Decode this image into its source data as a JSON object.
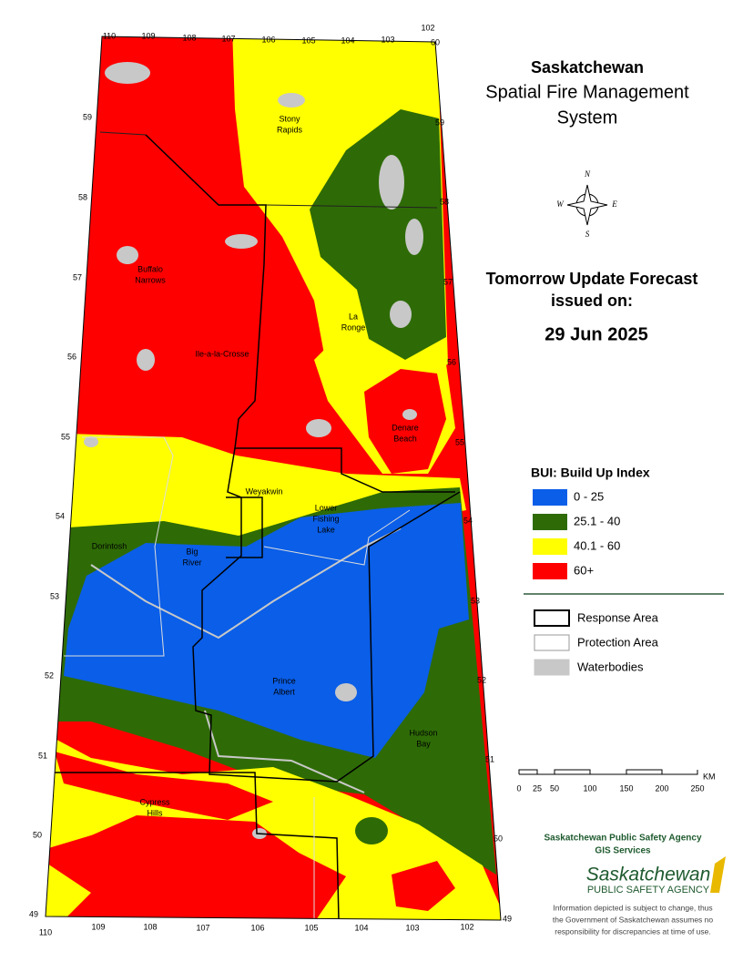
{
  "title": {
    "lines": [
      "Saskatchewan",
      "Spatial Fire Management",
      "System"
    ]
  },
  "forecast": {
    "heading": "Tomorrow Update Forecast",
    "issued": "issued on:",
    "date": "29 Jun 2025"
  },
  "compass": [
    "N",
    "E",
    "W",
    "S"
  ],
  "bui_legend": {
    "title": "BUI: Build Up Index",
    "items": [
      {
        "label": "0 - 25",
        "color": "#0a5ee8"
      },
      {
        "label": "25.1 - 40",
        "color": "#2e6b06"
      },
      {
        "label": "40.1 - 60",
        "color": "#ffff00"
      },
      {
        "label": "60+",
        "color": "#ff0000"
      }
    ]
  },
  "boundary_legend": {
    "items": [
      {
        "label": "Response Area",
        "fill": "#ffffff",
        "stroke": "#000000"
      },
      {
        "label": "Protection Area",
        "fill": "#ffffff",
        "stroke": "#9a9a9a"
      },
      {
        "label": "Waterbodies",
        "fill": "#c8c8c8",
        "stroke": "#c8c8c8"
      }
    ]
  },
  "scale_bar": {
    "ticks": [
      0,
      25,
      50,
      100,
      150,
      200,
      250
    ],
    "unit": "KM"
  },
  "agency": {
    "name": "Saskatchewan Public Safety Agency",
    "dept": "GIS  Services",
    "logo_main": "Saskatchewan",
    "logo_sub": "PUBLIC SAFETY AGENCY"
  },
  "disclaimer": [
    "Information depicted is subject to change, thus",
    "the Government of Saskatchewan assumes no",
    "responsibility for discrepancies at time of use."
  ],
  "places": [
    {
      "lines": [
        "Stony",
        "Rapids"
      ]
    },
    {
      "lines": [
        "Buffalo",
        "Narrows"
      ]
    },
    {
      "lines": [
        "La",
        "Ronge"
      ]
    },
    {
      "lines": [
        "Ile-a-la-Crosse"
      ]
    },
    {
      "lines": [
        "Denare",
        "Beach"
      ]
    },
    {
      "lines": [
        "Weyakwin"
      ]
    },
    {
      "lines": [
        "Lower",
        "Fishing",
        "Lake"
      ]
    },
    {
      "lines": [
        "Dorintosh"
      ]
    },
    {
      "lines": [
        "Big",
        "River"
      ]
    },
    {
      "lines": [
        "Prince",
        "Albert"
      ]
    },
    {
      "lines": [
        "Hudson",
        "Bay"
      ]
    },
    {
      "lines": [
        "Cypress",
        "Hills"
      ]
    }
  ],
  "graticule": {
    "top": [
      110,
      109,
      108,
      107,
      106,
      105,
      104,
      103,
      102,
      60
    ],
    "bottom": [
      110,
      109,
      108,
      107,
      106,
      105,
      104,
      103,
      102
    ],
    "left": [
      59,
      58,
      57,
      56,
      55,
      54,
      53,
      52,
      51,
      50,
      49
    ],
    "right": [
      59,
      58,
      57,
      56,
      55,
      54,
      53,
      52,
      51,
      50,
      49
    ]
  }
}
